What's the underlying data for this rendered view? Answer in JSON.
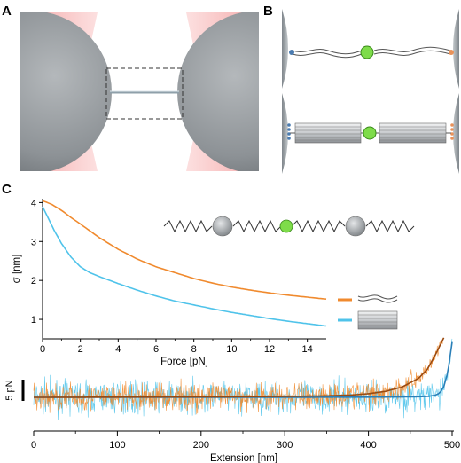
{
  "figure": {
    "panel_labels": [
      "A",
      "B",
      "C"
    ],
    "colors": {
      "orange": "#f08a2e",
      "blue": "#4fc3ea",
      "blue_dark": "#2a7fb8",
      "orange_dark": "#9a4a10",
      "bead": "#8f9498",
      "laser": "#f6a3a3",
      "green": "#7edc4a"
    }
  },
  "panel_c": {
    "scale_bar_label": "5 pN",
    "x_axis": {
      "label": "Extension [nm]",
      "ticks": [
        "0",
        "100",
        "200",
        "300",
        "400",
        "500"
      ]
    }
  },
  "chart_data": [
    {
      "type": "line",
      "title": "",
      "xlabel": "Force [pN]",
      "ylabel": "σ [nm]",
      "xlim": [
        0,
        15
      ],
      "ylim": [
        0.5,
        4.1
      ],
      "xticks": [
        "0",
        "2",
        "4",
        "6",
        "8",
        "10",
        "12",
        "14"
      ],
      "yticks": [
        "1",
        "2",
        "3",
        "4"
      ],
      "legend_placement": "right",
      "legend_icons": [
        "dsDNA (wavy lines)",
        "DNA origami bundle (rods)"
      ],
      "series": [
        {
          "color": "#f08a2e",
          "x": [
            0,
            0.5,
            1,
            1.5,
            2,
            3,
            4,
            5,
            6,
            7,
            8,
            9,
            10,
            11,
            12,
            13,
            14,
            15
          ],
          "y": [
            4.05,
            3.95,
            3.8,
            3.62,
            3.45,
            3.1,
            2.8,
            2.55,
            2.35,
            2.2,
            2.05,
            1.93,
            1.83,
            1.75,
            1.68,
            1.62,
            1.57,
            1.52
          ]
        },
        {
          "color": "#4fc3ea",
          "x": [
            0,
            0.3,
            0.6,
            1,
            1.5,
            2,
            2.5,
            3,
            4,
            5,
            6,
            7,
            8,
            9,
            10,
            11,
            12,
            13,
            14,
            15
          ],
          "y": [
            3.9,
            3.6,
            3.3,
            2.95,
            2.6,
            2.35,
            2.2,
            2.1,
            1.92,
            1.75,
            1.6,
            1.47,
            1.37,
            1.27,
            1.18,
            1.1,
            1.02,
            0.95,
            0.89,
            0.83
          ]
        }
      ]
    },
    {
      "type": "line",
      "title": "",
      "xlabel": "Extension [nm]",
      "ylabel": "",
      "xlim": [
        0,
        500
      ],
      "xticks": [
        "0",
        "100",
        "200",
        "300",
        "400",
        "500"
      ],
      "series": [
        {
          "color": "#f08a2e",
          "x": [
            0,
            100,
            200,
            300,
            350,
            380,
            400,
            420,
            440,
            460,
            470,
            480,
            490
          ],
          "y": [
            0,
            0.05,
            0.1,
            0.2,
            0.35,
            0.55,
            0.85,
            1.4,
            2.4,
            4.5,
            6.5,
            10,
            14
          ]
        },
        {
          "color": "#4fc3ea",
          "x": [
            0,
            100,
            200,
            300,
            400,
            450,
            470,
            480,
            485,
            490,
            495,
            500
          ],
          "y": [
            0,
            0,
            0,
            0.02,
            0.05,
            0.1,
            0.2,
            0.5,
            1,
            2.5,
            6,
            13
          ]
        }
      ]
    }
  ]
}
